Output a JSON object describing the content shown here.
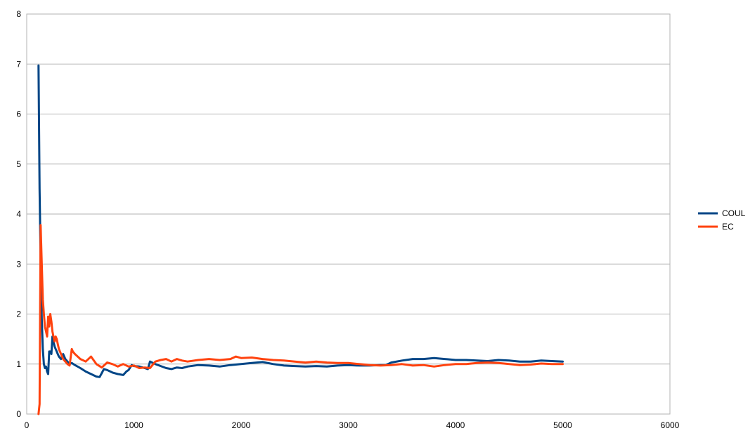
{
  "chart_data": {
    "type": "line",
    "title": "",
    "xlabel": "",
    "ylabel": "",
    "xlim": [
      0,
      6000
    ],
    "ylim": [
      0,
      8
    ],
    "x_ticks": [
      0,
      1000,
      2000,
      3000,
      4000,
      5000,
      6000
    ],
    "y_ticks": [
      0,
      1,
      2,
      3,
      4,
      5,
      6,
      7,
      8
    ],
    "x_tick_labels": [
      "0",
      "1000",
      "2000",
      "3000",
      "4000",
      "5000",
      "6000"
    ],
    "y_tick_labels": [
      "0",
      "1",
      "2",
      "3",
      "4",
      "5",
      "6",
      "7",
      "8"
    ],
    "grid": {
      "horizontal": true,
      "vertical": false
    },
    "legend_position": "right",
    "series": [
      {
        "name": "COUL",
        "color": "#004586",
        "x": [
          110,
          120,
          130,
          140,
          150,
          160,
          170,
          180,
          190,
          200,
          210,
          220,
          230,
          240,
          250,
          260,
          270,
          280,
          290,
          300,
          320,
          340,
          360,
          380,
          400,
          420,
          450,
          500,
          550,
          600,
          650,
          680,
          700,
          720,
          750,
          780,
          800,
          850,
          900,
          930,
          950,
          980,
          1000,
          1050,
          1100,
          1130,
          1150,
          1200,
          1250,
          1300,
          1350,
          1400,
          1450,
          1500,
          1600,
          1700,
          1800,
          1900,
          2000,
          2100,
          2200,
          2300,
          2400,
          2500,
          2600,
          2700,
          2800,
          2900,
          3000,
          3100,
          3200,
          3300,
          3350,
          3400,
          3500,
          3600,
          3700,
          3800,
          3900,
          4000,
          4100,
          4200,
          4300,
          4400,
          4500,
          4600,
          4700,
          4800,
          4900,
          5000
        ],
        "y": [
          6.97,
          4.5,
          3.1,
          1.9,
          1.3,
          1.0,
          0.92,
          0.95,
          0.85,
          0.8,
          1.25,
          1.25,
          1.2,
          1.55,
          1.45,
          1.35,
          1.3,
          1.25,
          1.2,
          1.15,
          1.1,
          1.2,
          1.1,
          1.05,
          1.0,
          1.02,
          0.98,
          0.92,
          0.85,
          0.8,
          0.75,
          0.74,
          0.82,
          0.9,
          0.88,
          0.85,
          0.83,
          0.8,
          0.78,
          0.85,
          0.88,
          0.98,
          0.96,
          0.95,
          0.92,
          0.9,
          1.05,
          1.0,
          0.96,
          0.92,
          0.9,
          0.93,
          0.92,
          0.95,
          0.98,
          0.97,
          0.95,
          0.98,
          1.0,
          1.02,
          1.04,
          1.0,
          0.97,
          0.96,
          0.95,
          0.96,
          0.95,
          0.97,
          0.98,
          0.97,
          0.97,
          0.98,
          0.98,
          1.03,
          1.07,
          1.1,
          1.1,
          1.12,
          1.1,
          1.08,
          1.08,
          1.07,
          1.06,
          1.08,
          1.07,
          1.05,
          1.05,
          1.07,
          1.06,
          1.05
        ]
      },
      {
        "name": "EC",
        "color": "#ff420e",
        "x": [
          110,
          120,
          130,
          140,
          150,
          160,
          170,
          180,
          190,
          200,
          210,
          220,
          230,
          240,
          250,
          260,
          270,
          280,
          290,
          300,
          320,
          340,
          360,
          380,
          400,
          420,
          430,
          450,
          500,
          550,
          600,
          650,
          700,
          750,
          800,
          850,
          900,
          950,
          1000,
          1050,
          1100,
          1150,
          1200,
          1250,
          1300,
          1350,
          1400,
          1450,
          1500,
          1600,
          1700,
          1800,
          1900,
          1950,
          2000,
          2100,
          2200,
          2300,
          2400,
          2500,
          2600,
          2700,
          2800,
          2900,
          3000,
          3100,
          3200,
          3300,
          3400,
          3500,
          3600,
          3700,
          3800,
          3900,
          4000,
          4100,
          4200,
          4300,
          4400,
          4500,
          4600,
          4700,
          4800,
          4900,
          5000
        ],
        "y": [
          0.0,
          0.2,
          3.78,
          3.0,
          2.3,
          2.0,
          1.75,
          1.65,
          1.55,
          1.95,
          1.75,
          2.0,
          1.85,
          1.65,
          1.55,
          1.45,
          1.55,
          1.5,
          1.4,
          1.3,
          1.2,
          1.1,
          1.05,
          1.0,
          0.97,
          1.3,
          1.25,
          1.2,
          1.1,
          1.05,
          1.15,
          1.0,
          0.93,
          1.03,
          1.0,
          0.95,
          1.0,
          0.95,
          0.97,
          0.92,
          0.93,
          0.92,
          1.05,
          1.08,
          1.1,
          1.05,
          1.1,
          1.07,
          1.05,
          1.08,
          1.1,
          1.08,
          1.1,
          1.15,
          1.12,
          1.13,
          1.1,
          1.08,
          1.07,
          1.05,
          1.03,
          1.05,
          1.03,
          1.02,
          1.02,
          1.0,
          0.98,
          0.97,
          0.98,
          1.0,
          0.97,
          0.98,
          0.95,
          0.98,
          1.0,
          1.0,
          1.02,
          1.03,
          1.02,
          1.0,
          0.98,
          0.99,
          1.01,
          1.0,
          1.0
        ]
      }
    ]
  }
}
